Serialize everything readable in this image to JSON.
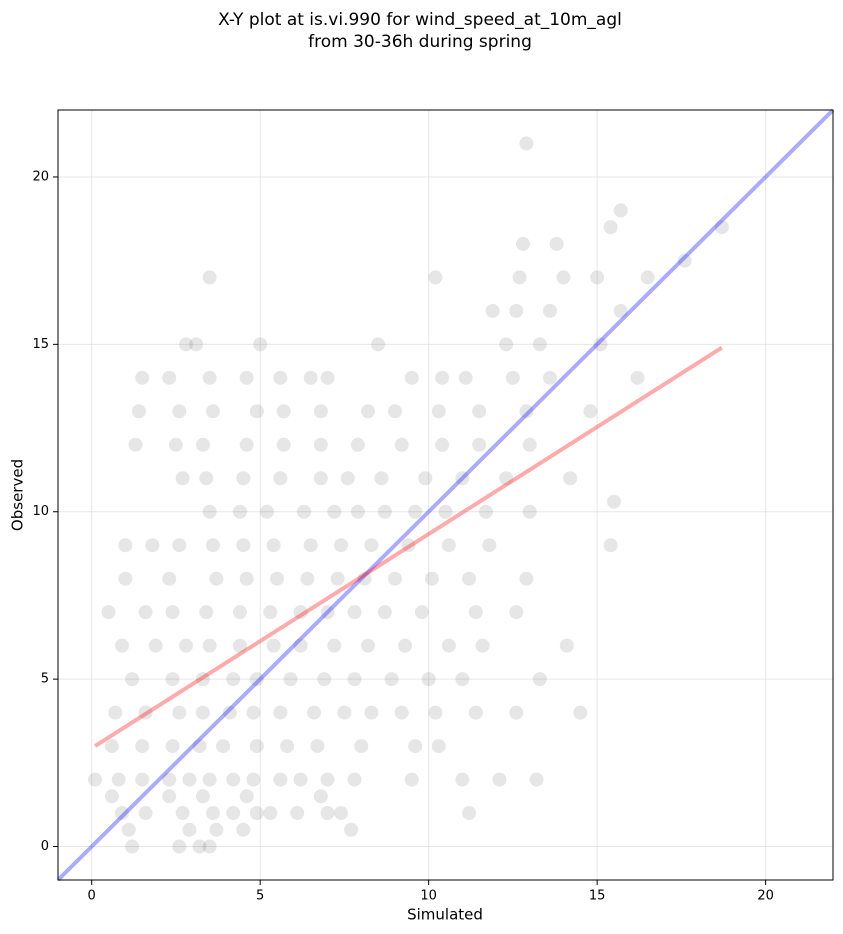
{
  "chart_data": {
    "type": "scatter",
    "title": [
      "X-Y plot at is.vi.990 for wind_speed_at_10m_agl",
      "from 30-36h during spring"
    ],
    "xlabel": "Simulated",
    "ylabel": "Observed",
    "xlim": [
      -1,
      22
    ],
    "ylim": [
      -1,
      22
    ],
    "xticks": [
      0,
      5,
      10,
      15,
      20
    ],
    "yticks": [
      0,
      5,
      10,
      15,
      20
    ],
    "grid": true,
    "color": "#555555",
    "x": [
      1.2,
      2.6,
      3.2,
      3.5,
      1.1,
      2.9,
      3.7,
      4.5,
      7.7,
      0.9,
      1.6,
      2.7,
      3.6,
      4.2,
      4.9,
      5.3,
      6.1,
      7.0,
      7.4,
      11.2,
      0.6,
      2.3,
      3.3,
      4.6,
      6.8,
      0.1,
      0.8,
      1.5,
      2.3,
      2.9,
      3.5,
      4.2,
      4.8,
      5.6,
      6.2,
      7.0,
      7.8,
      9.5,
      11.0,
      12.1,
      13.2,
      0.6,
      1.5,
      2.4,
      3.2,
      3.9,
      4.9,
      5.8,
      6.7,
      8.0,
      9.6,
      10.3,
      0.7,
      1.6,
      2.6,
      3.3,
      4.1,
      4.8,
      5.6,
      6.6,
      7.5,
      8.3,
      9.2,
      10.2,
      11.4,
      12.6,
      14.5,
      1.2,
      2.4,
      3.3,
      4.2,
      4.9,
      5.9,
      6.9,
      7.8,
      8.9,
      10.0,
      11.0,
      13.3,
      0.9,
      1.9,
      2.8,
      3.5,
      4.4,
      5.4,
      6.2,
      7.2,
      8.2,
      9.3,
      10.6,
      11.6,
      14.1,
      0.5,
      1.6,
      2.4,
      3.4,
      4.4,
      5.3,
      6.2,
      7.0,
      7.8,
      8.7,
      9.8,
      11.4,
      12.6,
      1.0,
      2.3,
      3.7,
      4.6,
      5.5,
      6.4,
      7.3,
      8.1,
      9.0,
      10.1,
      11.2,
      12.9,
      1.0,
      1.8,
      2.6,
      3.6,
      4.5,
      5.4,
      6.5,
      7.4,
      8.3,
      9.4,
      10.6,
      11.8,
      15.4,
      3.5,
      4.4,
      5.2,
      6.3,
      7.2,
      7.9,
      8.7,
      9.6,
      10.5,
      11.7,
      13.0,
      2.7,
      3.4,
      4.5,
      5.6,
      6.8,
      7.6,
      8.6,
      9.9,
      11.0,
      12.3,
      14.2,
      1.3,
      2.5,
      3.3,
      4.6,
      5.7,
      6.8,
      7.9,
      9.2,
      10.4,
      11.5,
      13.0,
      1.4,
      2.6,
      3.6,
      4.9,
      5.7,
      6.8,
      8.2,
      9.0,
      10.3,
      11.5,
      12.9,
      14.8,
      1.5,
      2.3,
      3.5,
      4.6,
      5.6,
      6.5,
      7.0,
      9.5,
      10.4,
      11.1,
      12.5,
      13.6,
      16.2,
      2.8,
      3.1,
      5.0,
      8.5,
      12.3,
      13.3,
      15.1,
      11.9,
      12.6,
      13.6,
      15.7,
      3.5,
      10.2,
      12.7,
      14.0,
      15.0,
      16.5,
      12.8,
      13.8,
      15.4,
      18.7,
      15.7,
      12.9,
      17.6,
      15.5
    ],
    "values": [
      0,
      0,
      0,
      0,
      0.5,
      0.5,
      0.5,
      0.5,
      0.5,
      1,
      1,
      1,
      1,
      1,
      1,
      1,
      1,
      1,
      1,
      1,
      1.5,
      1.5,
      1.5,
      1.5,
      1.5,
      2,
      2,
      2,
      2,
      2,
      2,
      2,
      2,
      2,
      2,
      2,
      2,
      2,
      2,
      2,
      2,
      3,
      3,
      3,
      3,
      3,
      3,
      3,
      3,
      3,
      3,
      3,
      4,
      4,
      4,
      4,
      4,
      4,
      4,
      4,
      4,
      4,
      4,
      4,
      4,
      4,
      4,
      5,
      5,
      5,
      5,
      5,
      5,
      5,
      5,
      5,
      5,
      5,
      5,
      6,
      6,
      6,
      6,
      6,
      6,
      6,
      6,
      6,
      6,
      6,
      6,
      6,
      7,
      7,
      7,
      7,
      7,
      7,
      7,
      7,
      7,
      7,
      7,
      7,
      7,
      8,
      8,
      8,
      8,
      8,
      8,
      8,
      8,
      8,
      8,
      8,
      8,
      9,
      9,
      9,
      9,
      9,
      9,
      9,
      9,
      9,
      9,
      9,
      9,
      9,
      10,
      10,
      10,
      10,
      10,
      10,
      10,
      10,
      10,
      10,
      10,
      11,
      11,
      11,
      11,
      11,
      11,
      11,
      11,
      11,
      11,
      11,
      12,
      12,
      12,
      12,
      12,
      12,
      12,
      12,
      12,
      12,
      12,
      13,
      13,
      13,
      13,
      13,
      13,
      13,
      13,
      13,
      13,
      13,
      13,
      14,
      14,
      14,
      14,
      14,
      14,
      14,
      14,
      14,
      14,
      14,
      14,
      14,
      15,
      15,
      15,
      15,
      15,
      15,
      15,
      16,
      16,
      16,
      16,
      17,
      17,
      17,
      17,
      17,
      17,
      18,
      18,
      18.5,
      18.5,
      19,
      21,
      17.5,
      10.3
    ],
    "lines": [
      {
        "color": "#0000ff",
        "x": [
          -1,
          22
        ],
        "values": [
          -1,
          22
        ]
      },
      {
        "color": "#ff0000",
        "x": [
          0.1,
          18.7
        ],
        "values": [
          3.0,
          14.9
        ]
      }
    ]
  }
}
